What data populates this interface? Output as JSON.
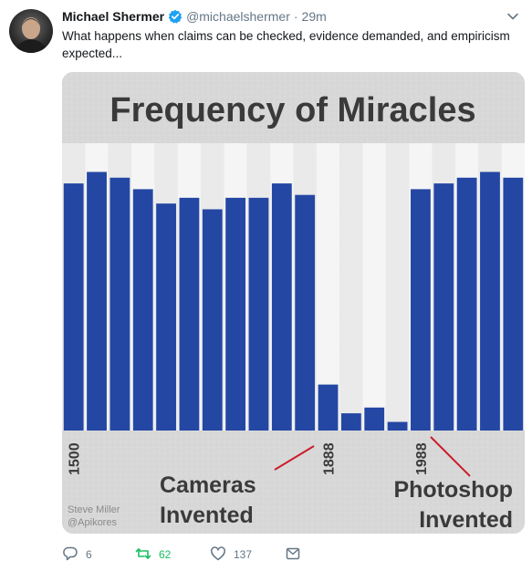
{
  "user": {
    "name": "Michael Shermer",
    "handle": "@michaelshermer",
    "separator": "·",
    "time": "29m"
  },
  "tweet": {
    "text": "What happens when claims can be checked, evidence demanded, and empiricism expected..."
  },
  "image": {
    "title": "Frequency of Miracles",
    "credit_line1": "Steve Miller",
    "credit_line2": "@Apikores",
    "annotation_left_line1": "Cameras",
    "annotation_left_line2": "Invented",
    "annotation_right_line1": "Photoshop",
    "annotation_right_line2": "Invented",
    "colors": {
      "bar": "#2447a3",
      "band_light": "#f5f5f5",
      "band_mid": "#eaeaea",
      "annotation_line": "#cc1b2b"
    }
  },
  "chart_data": {
    "type": "bar",
    "title": "Frequency of Miracles",
    "x_tick_labels": [
      "1500",
      "1888",
      "1988"
    ],
    "x_tick_bar_index": [
      0,
      11,
      15
    ],
    "values": [
      0.86,
      0.9,
      0.88,
      0.84,
      0.79,
      0.81,
      0.77,
      0.81,
      0.81,
      0.86,
      0.82,
      0.16,
      0.06,
      0.08,
      0.03,
      0.84,
      0.86,
      0.88,
      0.9,
      0.88
    ],
    "ylim": [
      0,
      1
    ]
  },
  "actions": {
    "reply_count": "6",
    "retweet_count": "62",
    "like_count": "137"
  },
  "icons": [
    "verified-badge-icon",
    "chevron-down-icon",
    "reply-icon",
    "retweet-icon",
    "like-icon",
    "direct-message-icon"
  ]
}
